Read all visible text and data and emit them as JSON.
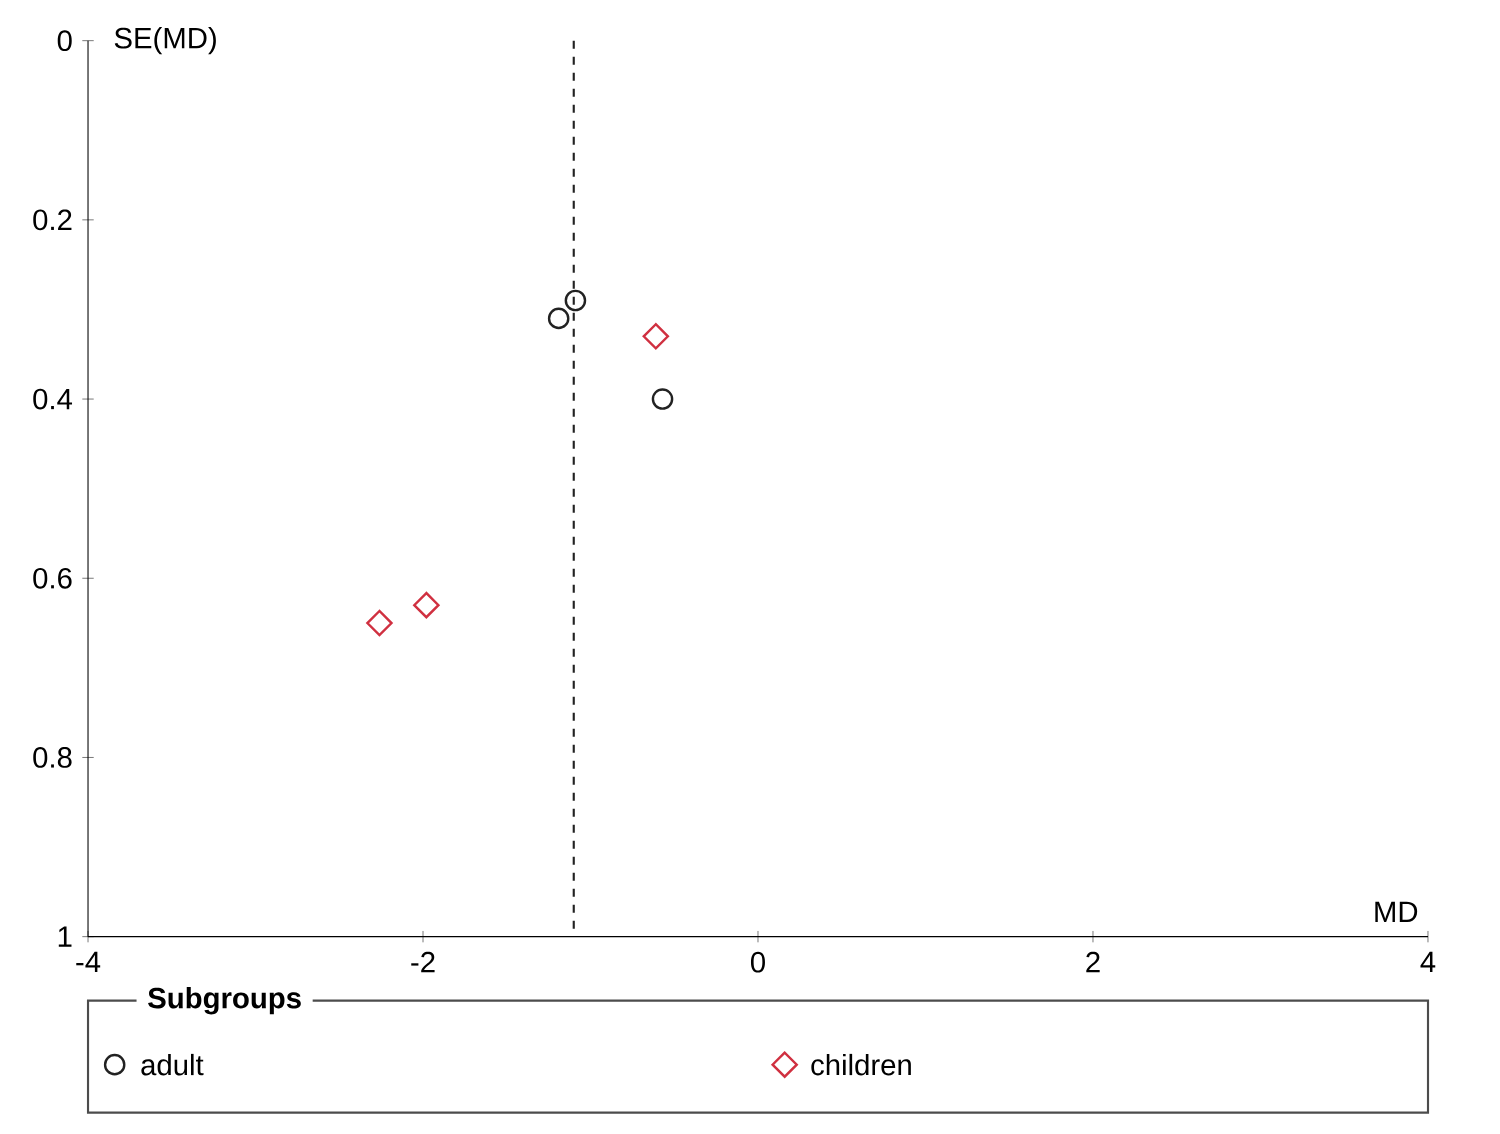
{
  "chart_data": {
    "type": "scatter",
    "xlabel": "MD",
    "ylabel": "SE(MD)",
    "legend_title": "Subgroups",
    "legend": "bottom",
    "xlim": [
      -4,
      4
    ],
    "xticks": [
      -4,
      -2,
      0,
      2,
      4
    ],
    "ylim": [
      1,
      0
    ],
    "yticks": [
      0,
      0.2,
      0.4,
      0.6,
      0.8,
      1
    ],
    "series": [
      {
        "name": "adult",
        "color": "#222222",
        "marker": "circle",
        "x": [
          -1.09,
          -1.19,
          -0.57
        ],
        "values": [
          0.29,
          0.31,
          0.4
        ]
      },
      {
        "name": "children",
        "color": "#d03040",
        "marker": "diamond",
        "x": [
          -0.61,
          -1.98,
          -2.26
        ],
        "values": [
          0.33,
          0.63,
          0.65
        ]
      }
    ],
    "ref_lines": [
      {
        "axis": "x",
        "value": -1.1,
        "line_style": "dashed",
        "color": "#222222"
      }
    ]
  }
}
